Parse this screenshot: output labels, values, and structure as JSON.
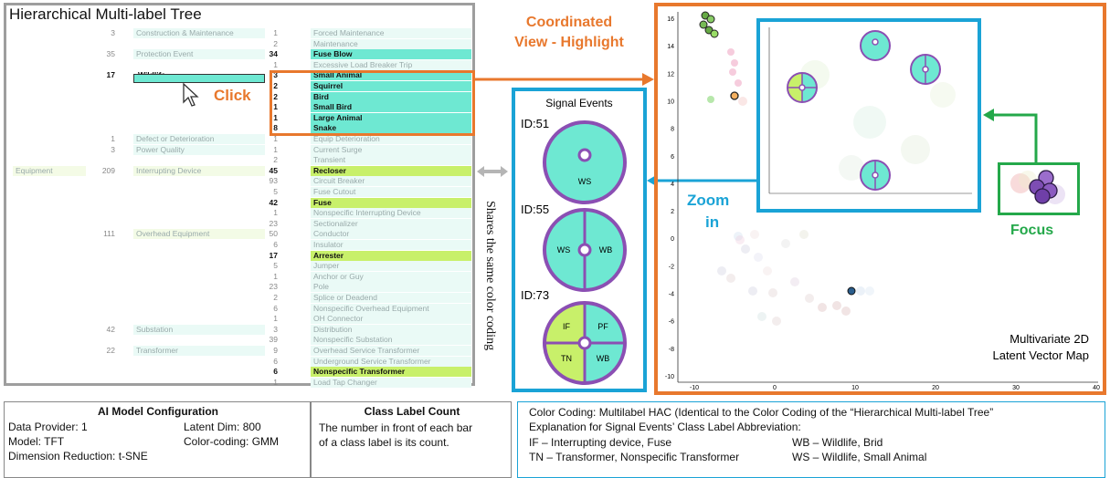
{
  "tree": {
    "title": "Hierarchical Multi-label Tree",
    "rows": [
      {
        "c1": "",
        "l1": "",
        "c2": "3",
        "l2": "Construction & Maintenance",
        "c3": "1",
        "l3": "Forced Maintenance",
        "hl": false
      },
      {
        "c1": "",
        "l1": "",
        "c2": "",
        "l2": "",
        "c3": "2",
        "l3": "Maintenance",
        "hl": false
      },
      {
        "c1": "",
        "l1": "",
        "c2": "35",
        "l2": "Protection Event",
        "c3": "34",
        "l3": "Fuse Blow",
        "hl": true
      },
      {
        "c1": "",
        "l1": "",
        "c2": "",
        "l2": "",
        "c3": "1",
        "l3": "Excessive Load Breaker Trip",
        "hl": false
      },
      {
        "c1": "",
        "l1": "",
        "c2": "17",
        "l2": "Wildlife",
        "c3": "3",
        "l3": "Small Animal",
        "hl": true
      },
      {
        "c1": "",
        "l1": "",
        "c2": "",
        "l2": "",
        "c3": "2",
        "l3": "Squirrel",
        "hl": true
      },
      {
        "c1": "",
        "l1": "",
        "c2": "",
        "l2": "",
        "c3": "2",
        "l3": "Bird",
        "hl": true
      },
      {
        "c1": "",
        "l1": "",
        "c2": "",
        "l2": "",
        "c3": "1",
        "l3": "Small Bird",
        "hl": true
      },
      {
        "c1": "",
        "l1": "",
        "c2": "",
        "l2": "",
        "c3": "1",
        "l3": "Large Animal",
        "hl": true
      },
      {
        "c1": "",
        "l1": "",
        "c2": "",
        "l2": "",
        "c3": "8",
        "l3": "Snake",
        "hl": true
      },
      {
        "c1": "",
        "l1": "",
        "c2": "1",
        "l2": "Defect or Deterioration",
        "c3": "1",
        "l3": "Equip Deterioration",
        "hl": false
      },
      {
        "c1": "",
        "l1": "",
        "c2": "3",
        "l2": "Power Quality",
        "c3": "1",
        "l3": "Current Surge",
        "hl": false
      },
      {
        "c1": "",
        "l1": "",
        "c2": "",
        "l2": "",
        "c3": "2",
        "l3": "Transient",
        "hl": false
      },
      {
        "c1": "Equipment",
        "l1": "209",
        "c2": "",
        "l2": "Interrupting Device",
        "c3": "45",
        "l3": "Recloser",
        "hl": true
      },
      {
        "c1": "",
        "l1": "",
        "c2": "",
        "l2": "",
        "c3": "93",
        "l3": "Circuit Breaker",
        "hl": false
      },
      {
        "c1": "",
        "l1": "",
        "c2": "",
        "l2": "",
        "c3": "5",
        "l3": "Fuse Cutout",
        "hl": false
      },
      {
        "c1": "",
        "l1": "",
        "c2": "",
        "l2": "",
        "c3": "42",
        "l3": "Fuse",
        "hl": true
      },
      {
        "c1": "",
        "l1": "",
        "c2": "",
        "l2": "",
        "c3": "1",
        "l3": "Nonspecific Interrupting Device",
        "hl": false
      },
      {
        "c1": "",
        "l1": "",
        "c2": "",
        "l2": "",
        "c3": "23",
        "l3": "Sectionalizer",
        "hl": false
      },
      {
        "c1": "",
        "l1": "",
        "c2": "111",
        "l2": "Overhead Equipment",
        "c3": "50",
        "l3": "Conductor",
        "hl": false
      },
      {
        "c1": "",
        "l1": "",
        "c2": "",
        "l2": "",
        "c3": "6",
        "l3": "Insulator",
        "hl": false
      },
      {
        "c1": "",
        "l1": "",
        "c2": "",
        "l2": "",
        "c3": "17",
        "l3": "Arrester",
        "hl": true
      },
      {
        "c1": "",
        "l1": "",
        "c2": "",
        "l2": "",
        "c3": "5",
        "l3": "Jumper",
        "hl": false
      },
      {
        "c1": "",
        "l1": "",
        "c2": "",
        "l2": "",
        "c3": "1",
        "l3": "Anchor or Guy",
        "hl": false
      },
      {
        "c1": "",
        "l1": "",
        "c2": "",
        "l2": "",
        "c3": "23",
        "l3": "Pole",
        "hl": false
      },
      {
        "c1": "",
        "l1": "",
        "c2": "",
        "l2": "",
        "c3": "2",
        "l3": "Splice or Deadend",
        "hl": false
      },
      {
        "c1": "",
        "l1": "",
        "c2": "",
        "l2": "",
        "c3": "6",
        "l3": "Nonspecific Overhead Equipment",
        "hl": false
      },
      {
        "c1": "",
        "l1": "",
        "c2": "",
        "l2": "",
        "c3": "1",
        "l3": "OH Connector",
        "hl": false
      },
      {
        "c1": "",
        "l1": "",
        "c2": "42",
        "l2": "Substation",
        "c3": "3",
        "l3": "Distribution",
        "hl": false
      },
      {
        "c1": "",
        "l1": "",
        "c2": "",
        "l2": "",
        "c3": "39",
        "l3": "Nonspecific Substation",
        "hl": false
      },
      {
        "c1": "",
        "l1": "",
        "c2": "22",
        "l2": "Transformer",
        "c3": "9",
        "l3": "Overhead Service Transformer",
        "hl": false
      },
      {
        "c1": "",
        "l1": "",
        "c2": "",
        "l2": "",
        "c3": "6",
        "l3": "Underground Service Transformer",
        "hl": false
      },
      {
        "c1": "",
        "l1": "",
        "c2": "",
        "l2": "",
        "c3": "6",
        "l3": "Nonspecific Transformer",
        "hl": true
      },
      {
        "c1": "",
        "l1": "",
        "c2": "",
        "l2": "",
        "c3": "1",
        "l3": "Load Tap Changer",
        "hl": false
      }
    ]
  },
  "annotations": {
    "click": "Click",
    "coordinated_line1": "Coordinated",
    "coordinated_line2": "View - Highlight",
    "zoom_line1": "Zoom",
    "zoom_line2": "in",
    "focus": "Focus",
    "shares": "Shares the same color coding"
  },
  "signal": {
    "title": "Signal Events",
    "ids": [
      "ID:51",
      "ID:55",
      "ID:73"
    ],
    "g1": [
      "WS"
    ],
    "g2": [
      "WS",
      "WB"
    ],
    "g3": [
      "IF",
      "PF",
      "TN",
      "WB"
    ]
  },
  "map": {
    "caption_line1": "Multivariate 2D",
    "caption_line2": "Latent Vector Map",
    "y_ticks": [
      "16",
      "14",
      "12",
      "10",
      "8",
      "6",
      "4",
      "2",
      "0",
      "-2",
      "-4",
      "-6",
      "-8",
      "-10"
    ],
    "x_ticks": [
      "-10",
      "0",
      "10",
      "20",
      "30",
      "40"
    ]
  },
  "config": {
    "title": "AI Model Configuration",
    "provider": "Data Provider: 1",
    "latent": "Latent Dim: 800",
    "model": "Model: TFT",
    "color": "Color-coding: GMM",
    "reduction": "Dimension Reduction: t-SNE"
  },
  "count": {
    "title": "Class Label Count",
    "text": "The number in front of each bar of a class label is its count."
  },
  "coding": {
    "line1": "Color Coding: Multilabel HAC (Identical to the Color Coding of the “Hierarchical Multi-label Tree”",
    "line2": "Explanation for Signal Events’ Class Label Abbreviation:",
    "if_text": "IF – Interrupting device, Fuse",
    "tn_text": "TN – Transformer, Nonspecific Transformer",
    "wb_text": "WB – Wildlife, Brid",
    "ws_text": "WS – Wildlife, Small Animal"
  },
  "colors": {
    "orange": "#e8782d",
    "blue": "#1aa3d6",
    "green": "#24a84a",
    "teal": "#6ee8d2",
    "lime": "#c8f06a"
  }
}
